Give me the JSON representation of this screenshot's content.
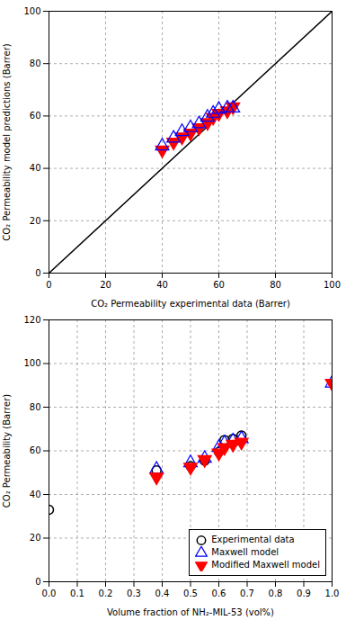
{
  "chart_data": [
    {
      "type": "scatter",
      "xlabel": "CO₂ Permeability experimental data (Barrer)",
      "ylabel": "CO₂ Permeability model predictions (Barrer)",
      "xlim": [
        0,
        100
      ],
      "ylim": [
        0,
        100
      ],
      "xticks": [
        0,
        20,
        40,
        60,
        80,
        100
      ],
      "yticks": [
        0,
        20,
        40,
        60,
        80,
        100
      ],
      "grid": true,
      "series": [
        {
          "type": "line",
          "color": "#000000",
          "line_style": "solid",
          "x": [
            0,
            100
          ],
          "values": [
            0,
            100
          ]
        },
        {
          "name": "Modified Maxwell model",
          "type": "scatter",
          "color": "#ff0000",
          "marker": "triangle-down",
          "x": [
            40.0,
            44.0,
            47.0,
            50.0,
            53.0,
            56.0,
            58.0,
            60.0,
            63.0,
            65.0
          ],
          "values": [
            47.0,
            50.0,
            52.0,
            53.5,
            55.5,
            57.5,
            59.5,
            61.0,
            62.0,
            63.5
          ]
        },
        {
          "name": "Maxwell model",
          "type": "scatter",
          "color": "#0000ff",
          "marker": "triangle-up-open",
          "x": [
            40.0,
            44.0,
            47.0,
            50.0,
            53.0,
            56.0,
            58.0,
            60.0,
            63.0,
            65.0
          ],
          "values": [
            48.5,
            51.5,
            54.0,
            55.5,
            57.0,
            59.5,
            61.0,
            62.5,
            63.0,
            63.0
          ]
        }
      ]
    },
    {
      "type": "scatter",
      "xlabel": "Volume fraction of NH₂-MIL-53 (vol%)",
      "ylabel": "CO₂ Permeability (Barrer)",
      "xlim": [
        0,
        1.0
      ],
      "ylim": [
        0,
        120
      ],
      "xticks": [
        {
          "value": 0,
          "label": "0.0"
        },
        0.1,
        0.2,
        0.3,
        0.4,
        0.5,
        0.6,
        0.7,
        0.8,
        0.9,
        {
          "value": 1,
          "label": "1.0"
        }
      ],
      "yticks": [
        0,
        20,
        40,
        60,
        80,
        100,
        120
      ],
      "grid": true,
      "legend": "lower right",
      "series": [
        {
          "name": "Experimental data",
          "type": "scatter",
          "color": "#000000",
          "marker": "circle-open",
          "x": [
            0.0,
            0.38,
            0.5,
            0.55,
            0.6,
            0.62,
            0.65,
            0.68
          ],
          "values": [
            33.0,
            51.0,
            53.0,
            55.5,
            59.5,
            65.0,
            65.5,
            67.0
          ]
        },
        {
          "name": "Maxwell model",
          "type": "scatter",
          "color": "#0000ff",
          "marker": "triangle-up-open",
          "x": [
            0.38,
            0.5,
            0.55,
            0.6,
            0.62,
            0.65,
            0.68,
            1.0
          ],
          "values": [
            51.5,
            54.5,
            56.5,
            61.5,
            63.5,
            64.5,
            65.5,
            91.0
          ]
        },
        {
          "name": "Modified Maxwell model",
          "type": "scatter",
          "color": "#ff0000",
          "marker": "triangle-down",
          "x": [
            0.38,
            0.5,
            0.55,
            0.6,
            0.62,
            0.65,
            0.68,
            1.0
          ],
          "values": [
            48.0,
            52.5,
            56.0,
            59.0,
            61.5,
            63.0,
            64.0,
            91.0
          ]
        }
      ]
    }
  ]
}
